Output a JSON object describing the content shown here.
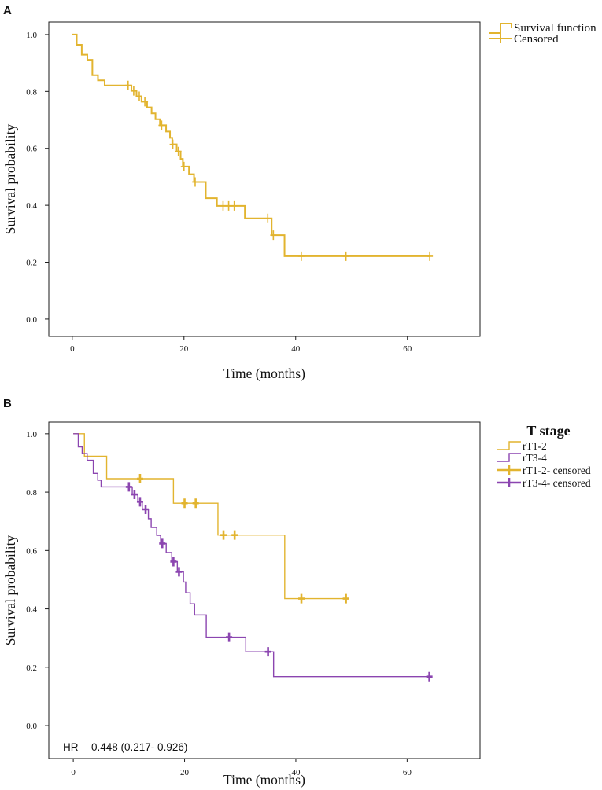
{
  "colors": {
    "gold": "#E2B42F",
    "purple": "#8B45B0",
    "frame": "#1A1A1A"
  },
  "chart_data": [
    {
      "panel": "A",
      "type": "line",
      "title": "",
      "xlabel": "Time (months)",
      "ylabel": "Survival probability",
      "xlim": [
        -4.2,
        73.0
      ],
      "ylim": [
        -0.061,
        1.044
      ],
      "xticks": [
        0,
        20,
        40,
        60
      ],
      "xtick_labels": [
        "0",
        "20",
        "40",
        "60"
      ],
      "yticks": [
        0.0,
        0.2,
        0.4,
        0.6,
        0.8,
        1.0
      ],
      "ytick_labels": [
        "0.0",
        "0.2",
        "0.4",
        "0.6",
        "0.8",
        "1.0"
      ],
      "grid": false,
      "legend": {
        "position": "right",
        "title": "",
        "censored_labels": [
          "Censored"
        ]
      },
      "series": [
        {
          "name": "Survival function",
          "color": "#E2B42F",
          "steps": [
            [
              0,
              1.0
            ],
            [
              0.8,
              0.964
            ],
            [
              1.7,
              0.929
            ],
            [
              2.7,
              0.911
            ],
            [
              3.6,
              0.857
            ],
            [
              4.6,
              0.839
            ],
            [
              5.8,
              0.821
            ],
            [
              10.6,
              0.802
            ],
            [
              11.5,
              0.783
            ],
            [
              12.4,
              0.764
            ],
            [
              13.4,
              0.744
            ],
            [
              14.2,
              0.723
            ],
            [
              14.9,
              0.702
            ],
            [
              15.7,
              0.681
            ],
            [
              16.8,
              0.659
            ],
            [
              17.5,
              0.637
            ],
            [
              17.9,
              0.614
            ],
            [
              18.7,
              0.589
            ],
            [
              19.4,
              0.563
            ],
            [
              19.8,
              0.536
            ],
            [
              20.9,
              0.509
            ],
            [
              21.8,
              0.482
            ],
            [
              23.9,
              0.425
            ],
            [
              25.9,
              0.398
            ],
            [
              30.9,
              0.354
            ],
            [
              35.7,
              0.295
            ],
            [
              38.0,
              0.221
            ]
          ],
          "end_time": 64,
          "censored": [
            [
              10,
              0.821
            ],
            [
              11,
              0.802
            ],
            [
              12,
              0.783
            ],
            [
              13,
              0.764
            ],
            [
              16,
              0.681
            ],
            [
              18,
              0.614
            ],
            [
              19,
              0.589
            ],
            [
              20,
              0.536
            ],
            [
              22,
              0.482
            ],
            [
              27,
              0.398
            ],
            [
              28,
              0.398
            ],
            [
              29,
              0.398
            ],
            [
              35,
              0.354
            ],
            [
              36,
              0.295
            ],
            [
              41,
              0.221
            ],
            [
              49,
              0.221
            ],
            [
              64,
              0.221
            ]
          ]
        }
      ]
    },
    {
      "panel": "B",
      "type": "line",
      "title": "",
      "xlabel": "Time (months)",
      "ylabel": "Survival probability",
      "xlim": [
        -4.4,
        73.1
      ],
      "ylim": [
        -0.113,
        1.04
      ],
      "xticks": [
        0,
        20,
        40,
        60
      ],
      "xtick_labels": [
        "0",
        "20",
        "40",
        "60"
      ],
      "yticks": [
        0.0,
        0.2,
        0.4,
        0.6,
        0.8,
        1.0
      ],
      "ytick_labels": [
        "0.0",
        "0.2",
        "0.4",
        "0.6",
        "0.8",
        "1.0"
      ],
      "grid": false,
      "legend": {
        "position": "right",
        "title": "T stage",
        "censored_labels": [
          "rT1-2- censored",
          "rT3-4- censored"
        ]
      },
      "annotation": {
        "label": "HR",
        "value": "0.448 (0.217- 0.926)"
      },
      "series": [
        {
          "name": "rT1-2",
          "color": "#E2B42F",
          "steps": [
            [
              0,
              1.0
            ],
            [
              2,
              0.923
            ],
            [
              6,
              0.846
            ],
            [
              18,
              0.762
            ],
            [
              26,
              0.653
            ],
            [
              38,
              0.435
            ]
          ],
          "end_time": 49,
          "censored": [
            [
              12,
              0.846
            ],
            [
              20,
              0.762
            ],
            [
              22,
              0.762
            ],
            [
              27,
              0.653
            ],
            [
              29,
              0.653
            ],
            [
              41,
              0.435
            ],
            [
              49,
              0.435
            ]
          ]
        },
        {
          "name": "rT3-4",
          "color": "#8B45B0",
          "steps": [
            [
              0,
              1.0
            ],
            [
              0.9,
              0.955
            ],
            [
              1.6,
              0.932
            ],
            [
              2.5,
              0.909
            ],
            [
              3.6,
              0.864
            ],
            [
              4.4,
              0.841
            ],
            [
              5.0,
              0.818
            ],
            [
              10.6,
              0.792
            ],
            [
              11.6,
              0.767
            ],
            [
              12.4,
              0.741
            ],
            [
              13.5,
              0.709
            ],
            [
              14.0,
              0.679
            ],
            [
              15.0,
              0.652
            ],
            [
              15.7,
              0.624
            ],
            [
              16.7,
              0.593
            ],
            [
              17.7,
              0.562
            ],
            [
              18.7,
              0.527
            ],
            [
              19.8,
              0.492
            ],
            [
              20.2,
              0.455
            ],
            [
              21.0,
              0.417
            ],
            [
              21.8,
              0.379
            ],
            [
              23.9,
              0.303
            ],
            [
              31.0,
              0.253
            ],
            [
              36.0,
              0.168
            ]
          ],
          "end_time": 64,
          "censored": [
            [
              10,
              0.818
            ],
            [
              11,
              0.792
            ],
            [
              12,
              0.767
            ],
            [
              13,
              0.741
            ],
            [
              16,
              0.624
            ],
            [
              18,
              0.562
            ],
            [
              19,
              0.527
            ],
            [
              28,
              0.303
            ],
            [
              35,
              0.253
            ],
            [
              64,
              0.168
            ]
          ]
        }
      ]
    }
  ]
}
